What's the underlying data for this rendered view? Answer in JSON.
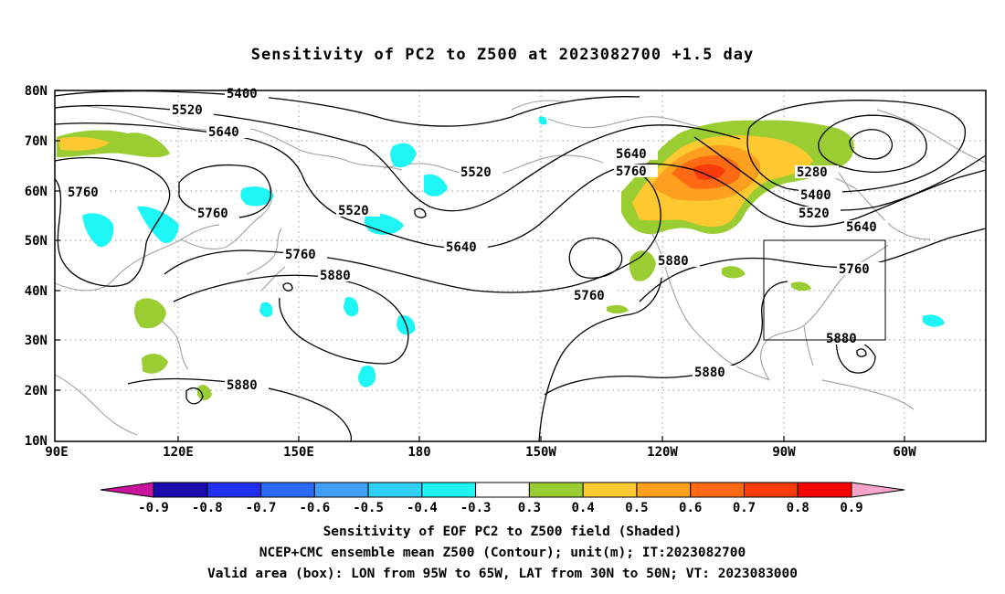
{
  "title": "Sensitivity of PC2 to Z500 at 2023082700 +1.5 day",
  "lat_labels": [
    "80N",
    "70N",
    "60N",
    "50N",
    "40N",
    "30N",
    "20N",
    "10N"
  ],
  "lon_labels": [
    "90E",
    "120E",
    "150E",
    "180",
    "150W",
    "120W",
    "90W",
    "60W"
  ],
  "contour_labels": [
    {
      "text": "5400"
    },
    {
      "text": "5520"
    },
    {
      "text": "5640"
    },
    {
      "text": "5760"
    },
    {
      "text": "5760"
    },
    {
      "text": "5520"
    },
    {
      "text": "5520"
    },
    {
      "text": "5640"
    },
    {
      "text": "5760"
    },
    {
      "text": "5880"
    },
    {
      "text": "5640"
    },
    {
      "text": "5760"
    },
    {
      "text": "5760"
    },
    {
      "text": "5880"
    },
    {
      "text": "5280"
    },
    {
      "text": "5400"
    },
    {
      "text": "5520"
    },
    {
      "text": "5640"
    },
    {
      "text": "5760"
    },
    {
      "text": "5880"
    },
    {
      "text": "5880"
    },
    {
      "text": "5880"
    }
  ],
  "colorbar": {
    "labels": [
      "-0.9",
      "-0.8",
      "-0.7",
      "-0.6",
      "-0.5",
      "-0.4",
      "-0.3",
      "0.3",
      "0.4",
      "0.5",
      "0.6",
      "0.7",
      "0.8",
      "0.9"
    ],
    "colors": [
      "#1a0dab",
      "#1f2ff0",
      "#2a6af5",
      "#3fa0f5",
      "#2ed0f5",
      "#1ef5f5",
      "#ffffff",
      "#9acd32",
      "#fdc830",
      "#fd9f1f",
      "#fd6a13",
      "#f73b0b",
      "#ff0000"
    ],
    "left_arrow_color": "#c8139a",
    "right_arrow_color": "#f7a6c8"
  },
  "box": {
    "lon_from": "95W",
    "lon_to": "65W",
    "lat_from": "30N",
    "lat_to": "50N"
  },
  "caption_lines": [
    "Sensitivity of EOF PC2 to Z500 field (Shaded)",
    "NCEP+CMC ensemble mean Z500 (Contour); unit(m); IT:2023082700",
    "Valid area (box): LON from 95W to 65W, LAT from 30N to 50N; VT: 2023083000"
  ]
}
